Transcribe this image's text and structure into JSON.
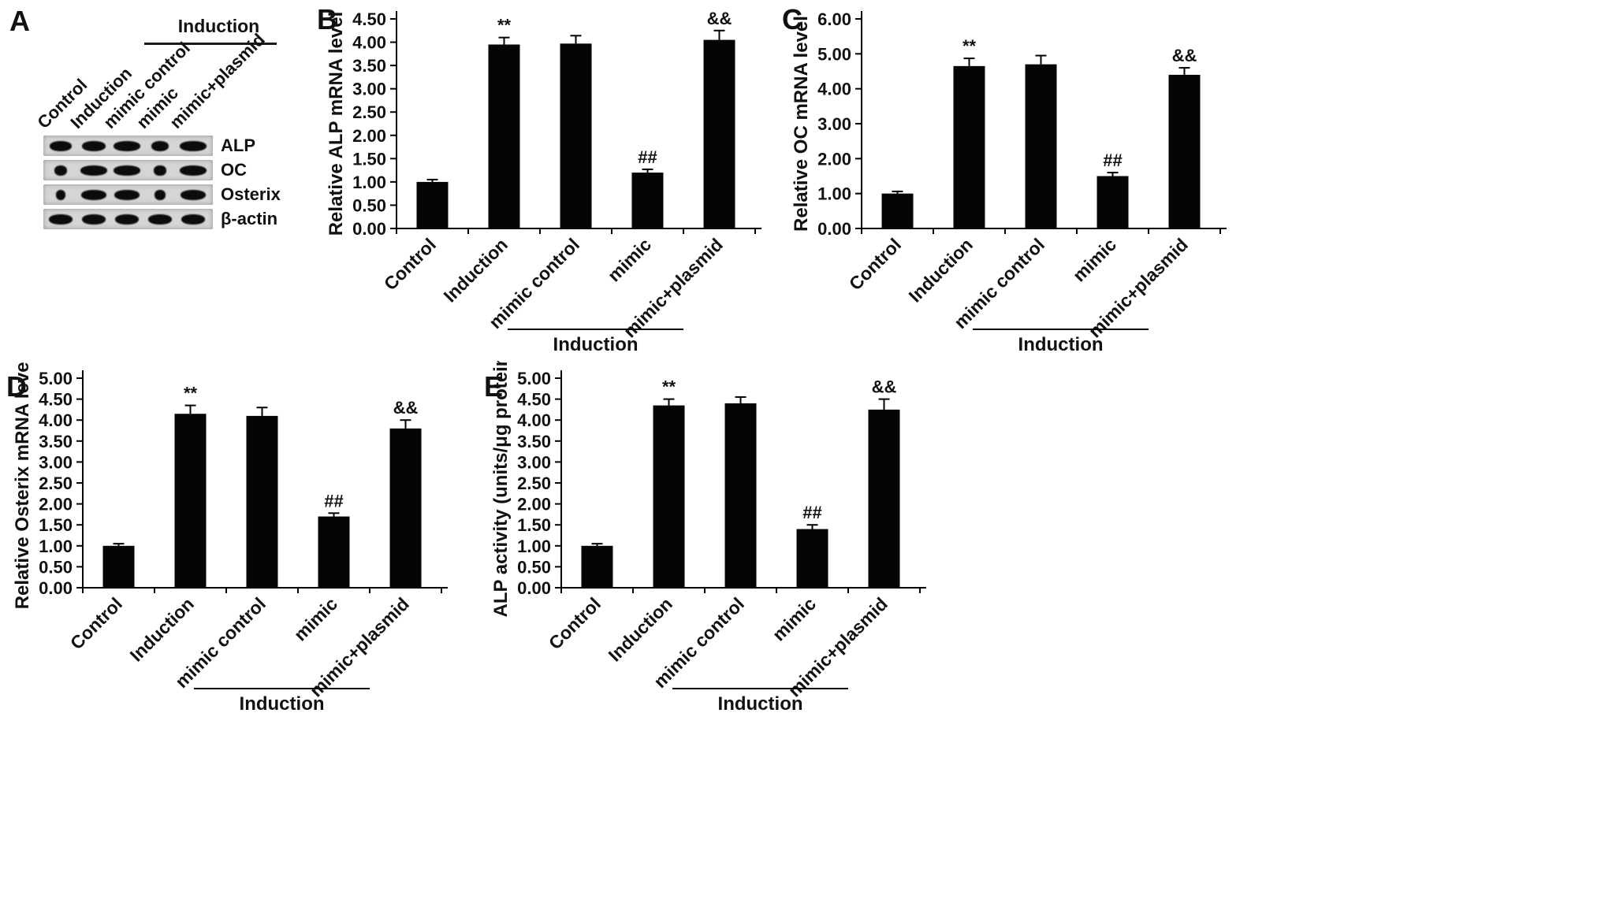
{
  "blot": {
    "panel_letter": "A",
    "induction_label": "Induction",
    "lane_labels": [
      "Control",
      "Induction",
      "mimic control",
      "mimic",
      "mimic+plasmid"
    ],
    "row_labels": [
      "ALP",
      "OC",
      "Osterix",
      "β-actin"
    ],
    "band_widths": [
      [
        0.8,
        0.85,
        0.95,
        0.62,
        0.95
      ],
      [
        0.45,
        0.95,
        0.95,
        0.42,
        0.95
      ],
      [
        0.35,
        0.9,
        0.9,
        0.38,
        0.9
      ],
      [
        0.85,
        0.85,
        0.85,
        0.85,
        0.85
      ]
    ]
  },
  "chart_data": [
    {
      "panel_letter": "B",
      "type": "bar",
      "title": "",
      "ylabel": "Relative ALP mRNA level",
      "categories": [
        "Control",
        "Induction",
        "mimic control",
        "mimic",
        "mimic+plasmid"
      ],
      "values": [
        1.0,
        3.95,
        3.97,
        1.2,
        4.05
      ],
      "errors": [
        0.05,
        0.15,
        0.17,
        0.07,
        0.2
      ],
      "annotations": [
        "",
        "**",
        "",
        "##",
        "&&"
      ],
      "ylim": [
        0,
        4.5
      ],
      "ytick_step": 0.5,
      "grid": false,
      "legend": "none",
      "group_label": "Induction",
      "group_span": [
        2,
        4
      ]
    },
    {
      "panel_letter": "C",
      "type": "bar",
      "title": "",
      "ylabel": "Relative OC mRNA level",
      "categories": [
        "Control",
        "Induction",
        "mimic control",
        "mimic",
        "mimic+plasmid"
      ],
      "values": [
        1.0,
        4.65,
        4.7,
        1.5,
        4.4
      ],
      "errors": [
        0.06,
        0.22,
        0.25,
        0.1,
        0.2
      ],
      "annotations": [
        "",
        "**",
        "",
        "##",
        "&&"
      ],
      "ylim": [
        0,
        6
      ],
      "ytick_step": 1,
      "grid": false,
      "legend": "none",
      "group_label": "Induction",
      "group_span": [
        2,
        4
      ]
    },
    {
      "panel_letter": "D",
      "type": "bar",
      "title": "",
      "ylabel": "Relative Osterix mRNA level",
      "categories": [
        "Control",
        "Induction",
        "mimic control",
        "mimic",
        "mimic+plasmid"
      ],
      "values": [
        1.0,
        4.15,
        4.1,
        1.7,
        3.8
      ],
      "errors": [
        0.05,
        0.2,
        0.2,
        0.08,
        0.2
      ],
      "annotations": [
        "",
        "**",
        "",
        "##",
        "&&"
      ],
      "ylim": [
        0,
        5
      ],
      "ytick_step": 0.5,
      "grid": false,
      "legend": "none",
      "group_label": "Induction",
      "group_span": [
        2,
        4
      ]
    },
    {
      "panel_letter": "E",
      "type": "bar",
      "title": "",
      "ylabel": "ALP activity (units/μg protein)",
      "categories": [
        "Control",
        "Induction",
        "mimic control",
        "mimic",
        "mimic+plasmid"
      ],
      "values": [
        1.0,
        4.35,
        4.4,
        1.4,
        4.25
      ],
      "errors": [
        0.05,
        0.15,
        0.15,
        0.1,
        0.25
      ],
      "annotations": [
        "",
        "**",
        "",
        "##",
        "&&"
      ],
      "ylim": [
        0,
        5
      ],
      "ytick_step": 0.5,
      "grid": false,
      "legend": "none",
      "group_label": "Induction",
      "group_span": [
        2,
        4
      ]
    }
  ]
}
